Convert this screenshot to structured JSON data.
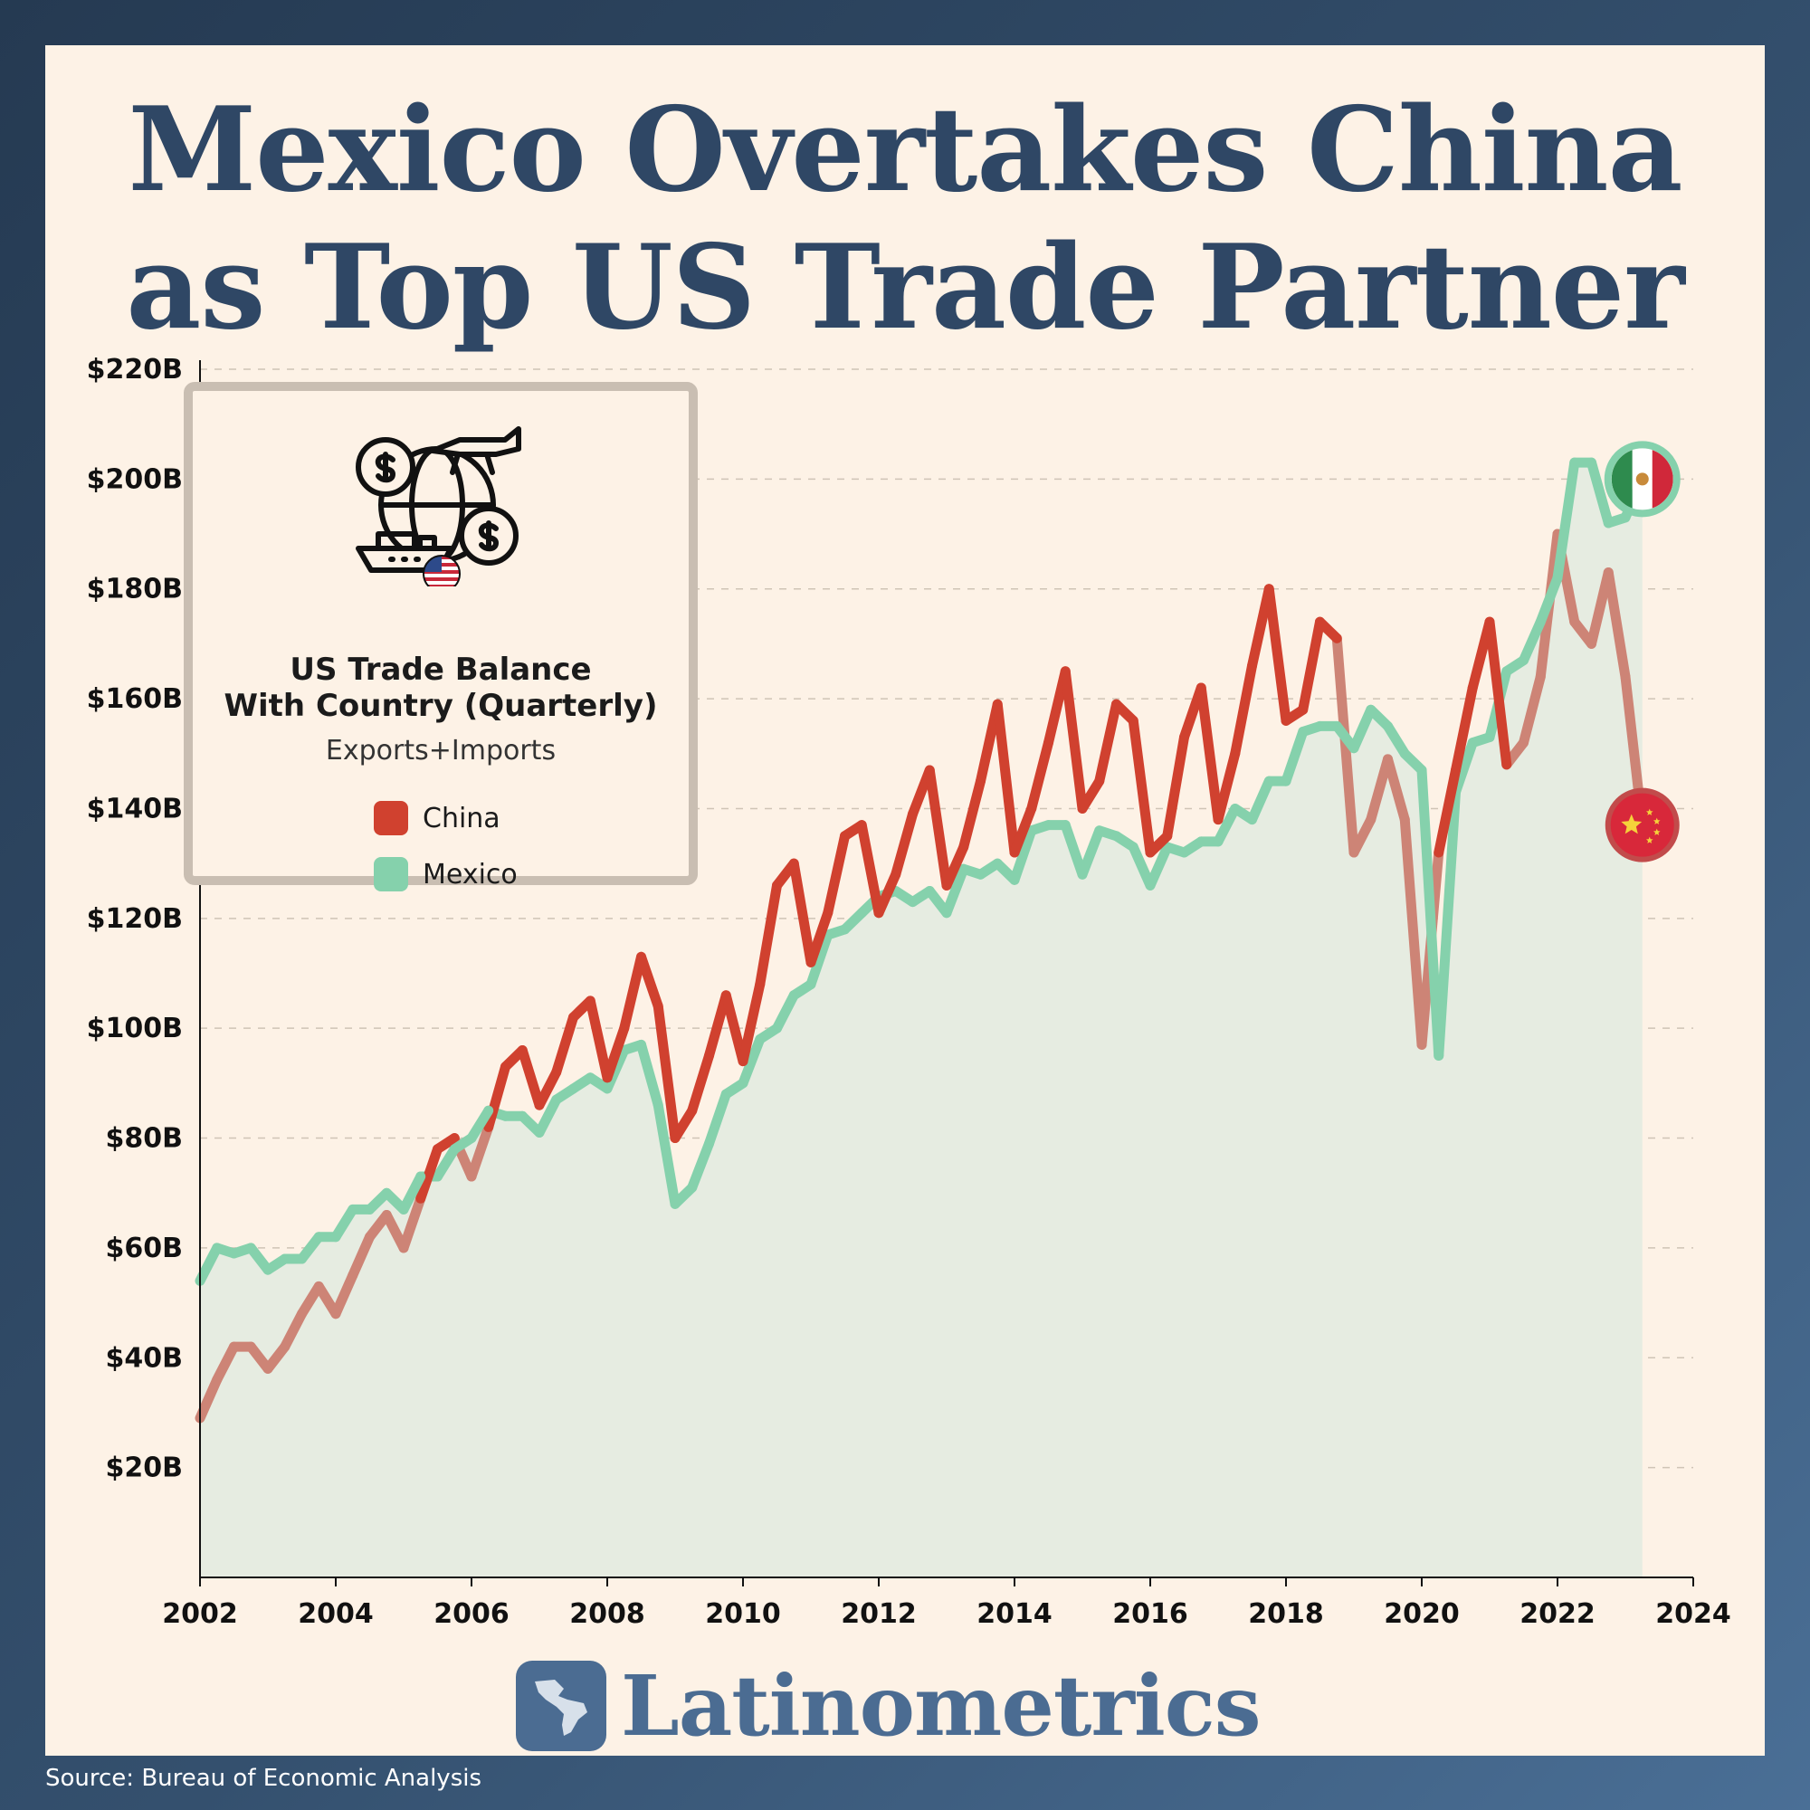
{
  "title_lines": [
    "Mexico Overtakes China",
    "as Top US Trade Partner"
  ],
  "legend": {
    "title_lines": [
      "US Trade Balance",
      "With Country (Quarterly)"
    ],
    "subtitle": "Exports+Imports",
    "items": [
      {
        "label": "China",
        "color": "#d0412f"
      },
      {
        "label": "Mexico",
        "color": "#85d1ac"
      }
    ],
    "icons": [
      "globe-trade-icon",
      "us-flag-icon"
    ]
  },
  "brand": "Latinometrics",
  "source": "Source: Bureau of Economic Analysis",
  "colors": {
    "china": "#d0412f",
    "china_faded": "#cd8476",
    "mexico": "#85d1ac",
    "mexico_fill": "#e6ece1",
    "title": "#2f4765",
    "background": "#fdf2e6",
    "frame": "#2f4765"
  },
  "chart_data": {
    "type": "line",
    "title": "Mexico Overtakes China as Top US Trade Partner",
    "xlabel": "",
    "ylabel": "",
    "xlim": [
      2002,
      2024
    ],
    "ylim": [
      0,
      220
    ],
    "x_ticks": [
      "2002",
      "2004",
      "2006",
      "2008",
      "2010",
      "2012",
      "2014",
      "2016",
      "2018",
      "2020",
      "2022",
      "2024"
    ],
    "y_ticks": [
      "$20B",
      "$40B",
      "$60B",
      "$80B",
      "$100B",
      "$120B",
      "$140B",
      "$160B",
      "$180B",
      "$200B",
      "$220B"
    ],
    "y_tick_values": [
      20,
      40,
      60,
      80,
      100,
      120,
      140,
      160,
      180,
      200,
      220
    ],
    "grid": true,
    "legend_position": "top-left",
    "x": [
      2002.0,
      2002.25,
      2002.5,
      2002.75,
      2003.0,
      2003.25,
      2003.5,
      2003.75,
      2004.0,
      2004.25,
      2004.5,
      2004.75,
      2005.0,
      2005.25,
      2005.5,
      2005.75,
      2006.0,
      2006.25,
      2006.5,
      2006.75,
      2007.0,
      2007.25,
      2007.5,
      2007.75,
      2008.0,
      2008.25,
      2008.5,
      2008.75,
      2009.0,
      2009.25,
      2009.5,
      2009.75,
      2010.0,
      2010.25,
      2010.5,
      2010.75,
      2011.0,
      2011.25,
      2011.5,
      2011.75,
      2012.0,
      2012.25,
      2012.5,
      2012.75,
      2013.0,
      2013.25,
      2013.5,
      2013.75,
      2014.0,
      2014.25,
      2014.5,
      2014.75,
      2015.0,
      2015.25,
      2015.5,
      2015.75,
      2016.0,
      2016.25,
      2016.5,
      2016.75,
      2017.0,
      2017.25,
      2017.5,
      2017.75,
      2018.0,
      2018.25,
      2018.5,
      2018.75,
      2019.0,
      2019.25,
      2019.5,
      2019.75,
      2020.0,
      2020.25,
      2020.5,
      2020.75,
      2021.0,
      2021.25,
      2021.5,
      2021.75,
      2022.0,
      2022.25,
      2022.5,
      2022.75,
      2023.0,
      2023.25
    ],
    "series": [
      {
        "name": "China",
        "values": [
          29,
          36,
          42,
          42,
          38,
          42,
          48,
          53,
          48,
          55,
          62,
          66,
          60,
          69,
          78,
          80,
          73,
          82,
          93,
          96,
          86,
          92,
          102,
          105,
          91,
          100,
          113,
          104,
          80,
          85,
          95,
          106,
          94,
          108,
          126,
          130,
          112,
          121,
          135,
          137,
          121,
          128,
          139,
          147,
          126,
          133,
          145,
          159,
          132,
          140,
          152,
          165,
          140,
          145,
          159,
          156,
          132,
          135,
          153,
          162,
          138,
          150,
          166,
          180,
          156,
          158,
          174,
          171,
          132,
          138,
          149,
          138,
          97,
          132,
          147,
          162,
          174,
          148,
          152,
          164,
          190,
          174,
          170,
          183,
          164,
          137
        ]
      },
      {
        "name": "Mexico",
        "values": [
          54,
          60,
          59,
          60,
          56,
          58,
          58,
          62,
          62,
          67,
          67,
          70,
          67,
          73,
          73,
          78,
          80,
          85,
          84,
          84,
          81,
          87,
          89,
          91,
          89,
          96,
          97,
          86,
          68,
          71,
          79,
          88,
          90,
          98,
          100,
          106,
          108,
          117,
          118,
          121,
          124,
          125,
          123,
          125,
          121,
          129,
          128,
          130,
          127,
          136,
          137,
          137,
          128,
          136,
          135,
          133,
          126,
          133,
          132,
          134,
          134,
          140,
          138,
          145,
          145,
          154,
          155,
          155,
          151,
          158,
          155,
          150,
          147,
          95,
          143,
          152,
          153,
          165,
          167,
          174,
          182,
          203,
          203,
          192,
          193,
          200
        ]
      }
    ]
  }
}
